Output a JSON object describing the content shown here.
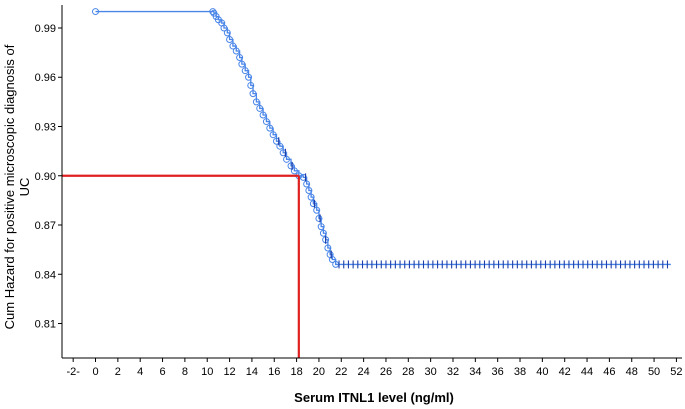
{
  "chart_data": {
    "type": "line",
    "title": "",
    "xlabel": "Serum ITNL1 level (ng/ml)",
    "ylabel_lines": [
      "Cum Hazard for positive microscopic diagnosis of",
      "UC"
    ],
    "xlim": [
      -3,
      52.5
    ],
    "ylim": [
      0.789,
      1.004
    ],
    "x_ticks": [
      {
        "value": -2,
        "label": "-2-"
      },
      {
        "value": 0,
        "label": "0"
      },
      {
        "value": 2,
        "label": "2"
      },
      {
        "value": 4,
        "label": "4"
      },
      {
        "value": 6,
        "label": "6"
      },
      {
        "value": 8,
        "label": "8"
      },
      {
        "value": 10,
        "label": "10"
      },
      {
        "value": 12,
        "label": "12"
      },
      {
        "value": 14,
        "label": "14"
      },
      {
        "value": 16,
        "label": "16"
      },
      {
        "value": 18,
        "label": "18"
      },
      {
        "value": 20,
        "label": "20"
      },
      {
        "value": 22,
        "label": "22"
      },
      {
        "value": 24,
        "label": "24"
      },
      {
        "value": 26,
        "label": "26"
      },
      {
        "value": 28,
        "label": "28"
      },
      {
        "value": 30,
        "label": "30"
      },
      {
        "value": 32,
        "label": "32"
      },
      {
        "value": 34,
        "label": "34"
      },
      {
        "value": 36,
        "label": "36"
      },
      {
        "value": 38,
        "label": "38"
      },
      {
        "value": 40,
        "label": "40"
      },
      {
        "value": 42,
        "label": "42"
      },
      {
        "value": 44,
        "label": "44"
      },
      {
        "value": 46,
        "label": "46"
      },
      {
        "value": 48,
        "label": "48"
      },
      {
        "value": 50,
        "label": "50"
      },
      {
        "value": 52,
        "label": "52"
      }
    ],
    "y_ticks": [
      {
        "value": 0.99,
        "label": "0.99"
      },
      {
        "value": 0.96,
        "label": "0.96"
      },
      {
        "value": 0.93,
        "label": "0.93"
      },
      {
        "value": 0.9,
        "label": "0.90"
      },
      {
        "value": 0.87,
        "label": "0.87"
      },
      {
        "value": 0.84,
        "label": "0.84"
      },
      {
        "value": 0.81,
        "label": "0.81"
      }
    ],
    "series": [
      {
        "color": "#4a86e8",
        "points": [
          [
            0,
            1.0
          ],
          [
            10.5,
            1.0
          ],
          [
            10.6,
            0.999
          ],
          [
            10.8,
            0.997
          ],
          [
            11.0,
            0.995
          ],
          [
            11.3,
            0.993
          ],
          [
            11.5,
            0.99
          ],
          [
            11.8,
            0.987
          ],
          [
            12.0,
            0.983
          ],
          [
            12.3,
            0.979
          ],
          [
            12.6,
            0.976
          ],
          [
            12.9,
            0.972
          ],
          [
            13.1,
            0.968
          ],
          [
            13.4,
            0.964
          ],
          [
            13.7,
            0.96
          ],
          [
            13.9,
            0.955
          ],
          [
            14.1,
            0.95
          ],
          [
            14.4,
            0.945
          ],
          [
            14.7,
            0.941
          ],
          [
            15.0,
            0.937
          ],
          [
            15.3,
            0.933
          ],
          [
            15.6,
            0.929
          ],
          [
            15.9,
            0.925
          ],
          [
            16.2,
            0.921
          ],
          [
            16.5,
            0.918
          ],
          [
            16.8,
            0.914
          ],
          [
            17.1,
            0.91
          ],
          [
            17.5,
            0.906
          ],
          [
            17.8,
            0.903
          ],
          [
            18.2,
            0.9
          ],
          [
            18.6,
            0.899
          ],
          [
            18.9,
            0.895
          ],
          [
            19.1,
            0.891
          ],
          [
            19.3,
            0.887
          ],
          [
            19.5,
            0.883
          ],
          [
            19.8,
            0.879
          ],
          [
            20.0,
            0.874
          ],
          [
            20.2,
            0.869
          ],
          [
            20.4,
            0.865
          ],
          [
            20.6,
            0.861
          ],
          [
            20.8,
            0.856
          ],
          [
            21.0,
            0.852
          ],
          [
            21.2,
            0.849
          ],
          [
            21.5,
            0.846
          ],
          [
            22.0,
            0.846
          ],
          [
            51.5,
            0.846
          ]
        ]
      }
    ],
    "reference_lines": {
      "color": "#e02020",
      "x_value": 18.2,
      "y_value": 0.9
    }
  }
}
